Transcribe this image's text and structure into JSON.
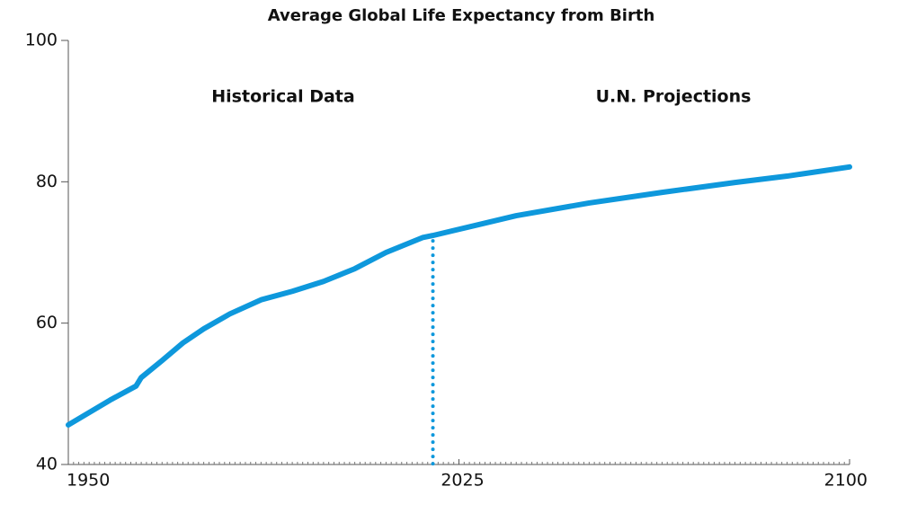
{
  "chart_data": {
    "type": "line",
    "title": "Average Global Life Expectancy from Birth",
    "annotations": [
      "Historical Data",
      "U.N. Projections"
    ],
    "x": [
      1950,
      1958,
      1963,
      1964,
      1968,
      1972,
      1976,
      1981,
      1987,
      1993,
      1999,
      2005,
      2011,
      2018,
      2020,
      2036,
      2050,
      2064,
      2078,
      2088,
      2100
    ],
    "series": [
      {
        "name": "Life expectancy",
        "color": "#0e98dc",
        "values": [
          45.6,
          49.1,
          51.1,
          52.3,
          54.7,
          57.2,
          59.2,
          61.3,
          63.3,
          64.5,
          65.9,
          67.7,
          70.0,
          72.1,
          72.4,
          75.2,
          77.0,
          78.5,
          79.9,
          80.8,
          82.1
        ]
      }
    ],
    "divider_x": 2020,
    "xlim": [
      1950,
      2100
    ],
    "xticks": [
      1950,
      2025,
      2100
    ],
    "minor_tick_step": 1,
    "ylim": [
      40,
      100
    ],
    "yticks": [
      40,
      60,
      80,
      100
    ],
    "grid": false
  }
}
